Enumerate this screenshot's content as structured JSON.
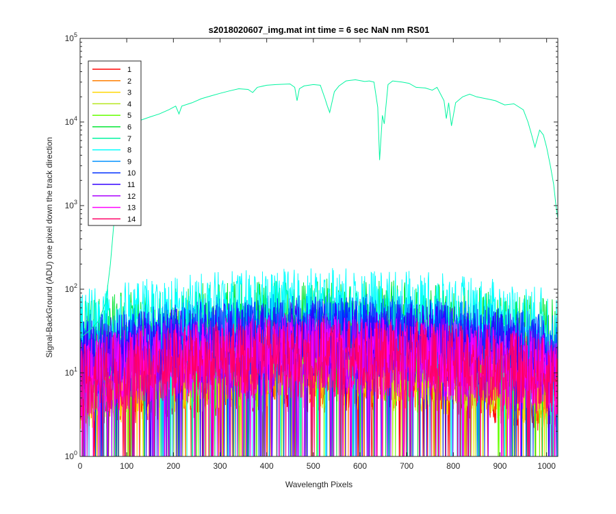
{
  "chart_data": {
    "type": "line",
    "title": "s2018020607_img.mat int time = 6 sec  NaN nm RS01",
    "xlabel": "Wavelength Pixels",
    "ylabel": "Signal-BackGround (ADU) one pixel down the track direction",
    "xlim": [
      0,
      1024
    ],
    "ylim": [
      1,
      100000
    ],
    "yscale": "log",
    "grid": false,
    "legend_position": "top-left",
    "x_ticks": [
      "0",
      "100",
      "200",
      "300",
      "400",
      "500",
      "600",
      "700",
      "800",
      "900",
      "1000"
    ],
    "y_ticks": [
      {
        "base": "10",
        "exp": "0"
      },
      {
        "base": "10",
        "exp": "1"
      },
      {
        "base": "10",
        "exp": "2"
      },
      {
        "base": "10",
        "exp": "3"
      },
      {
        "base": "10",
        "exp": "4"
      },
      {
        "base": "10",
        "exp": "5"
      }
    ],
    "series": [
      {
        "name": "1",
        "color": "#ff0000",
        "profile": "noise",
        "level": 10
      },
      {
        "name": "2",
        "color": "#ff7f00",
        "profile": "noise",
        "level": 12
      },
      {
        "name": "3",
        "color": "#ffd700",
        "profile": "noise",
        "level": 11
      },
      {
        "name": "4",
        "color": "#b5e61d",
        "profile": "noise",
        "level": 14
      },
      {
        "name": "5",
        "color": "#66ff00",
        "profile": "noise",
        "level": 25
      },
      {
        "name": "6",
        "color": "#00e632",
        "profile": "noise",
        "level": 45
      },
      {
        "name": "7",
        "color": "#00f5a0",
        "profile": "signal",
        "points": [
          [
            0,
            26
          ],
          [
            20,
            32
          ],
          [
            40,
            42
          ],
          [
            55,
            70
          ],
          [
            65,
            200
          ],
          [
            75,
            900
          ],
          [
            85,
            4000
          ],
          [
            95,
            9000
          ],
          [
            110,
            10500
          ],
          [
            130,
            10500
          ],
          [
            150,
            11500
          ],
          [
            170,
            12500
          ],
          [
            190,
            14000
          ],
          [
            205,
            15500
          ],
          [
            212,
            12500
          ],
          [
            218,
            15500
          ],
          [
            240,
            17000
          ],
          [
            260,
            19000
          ],
          [
            280,
            20500
          ],
          [
            300,
            22000
          ],
          [
            320,
            23500
          ],
          [
            340,
            25000
          ],
          [
            360,
            24500
          ],
          [
            370,
            22500
          ],
          [
            380,
            26000
          ],
          [
            400,
            27500
          ],
          [
            420,
            28000
          ],
          [
            450,
            28500
          ],
          [
            460,
            26000
          ],
          [
            465,
            18000
          ],
          [
            470,
            25000
          ],
          [
            480,
            27000
          ],
          [
            500,
            28000
          ],
          [
            515,
            27500
          ],
          [
            525,
            19000
          ],
          [
            530,
            15500
          ],
          [
            535,
            13000
          ],
          [
            545,
            23000
          ],
          [
            555,
            27000
          ],
          [
            570,
            31000
          ],
          [
            590,
            32000
          ],
          [
            610,
            30500
          ],
          [
            620,
            31000
          ],
          [
            630,
            30000
          ],
          [
            638,
            15000
          ],
          [
            642,
            3500
          ],
          [
            648,
            12000
          ],
          [
            652,
            9500
          ],
          [
            660,
            28000
          ],
          [
            670,
            31000
          ],
          [
            690,
            30000
          ],
          [
            705,
            29000
          ],
          [
            720,
            26000
          ],
          [
            740,
            25500
          ],
          [
            755,
            24000
          ],
          [
            765,
            26000
          ],
          [
            780,
            18000
          ],
          [
            785,
            11000
          ],
          [
            790,
            17000
          ],
          [
            796,
            9000
          ],
          [
            805,
            17000
          ],
          [
            820,
            20000
          ],
          [
            835,
            21500
          ],
          [
            850,
            20000
          ],
          [
            870,
            19000
          ],
          [
            880,
            18500
          ],
          [
            890,
            18000
          ],
          [
            910,
            16000
          ],
          [
            930,
            16500
          ],
          [
            950,
            14000
          ],
          [
            960,
            10000
          ],
          [
            968,
            7000
          ],
          [
            975,
            5000
          ],
          [
            985,
            8000
          ],
          [
            993,
            7000
          ],
          [
            1000,
            5000
          ],
          [
            1008,
            3000
          ],
          [
            1015,
            1800
          ],
          [
            1020,
            1000
          ],
          [
            1024,
            700
          ]
        ]
      },
      {
        "name": "8",
        "color": "#00ffff",
        "profile": "noise",
        "level": 60
      },
      {
        "name": "9",
        "color": "#0090ff",
        "profile": "noise",
        "level": 30
      },
      {
        "name": "10",
        "color": "#0030ff",
        "profile": "noise",
        "level": 28
      },
      {
        "name": "11",
        "color": "#3300ff",
        "profile": "noise",
        "level": 25
      },
      {
        "name": "12",
        "color": "#aa00ff",
        "profile": "noise",
        "level": 18
      },
      {
        "name": "13",
        "color": "#ff00ff",
        "profile": "noise",
        "level": 16
      },
      {
        "name": "14",
        "color": "#ff0066",
        "profile": "noise",
        "level": 15
      }
    ]
  }
}
